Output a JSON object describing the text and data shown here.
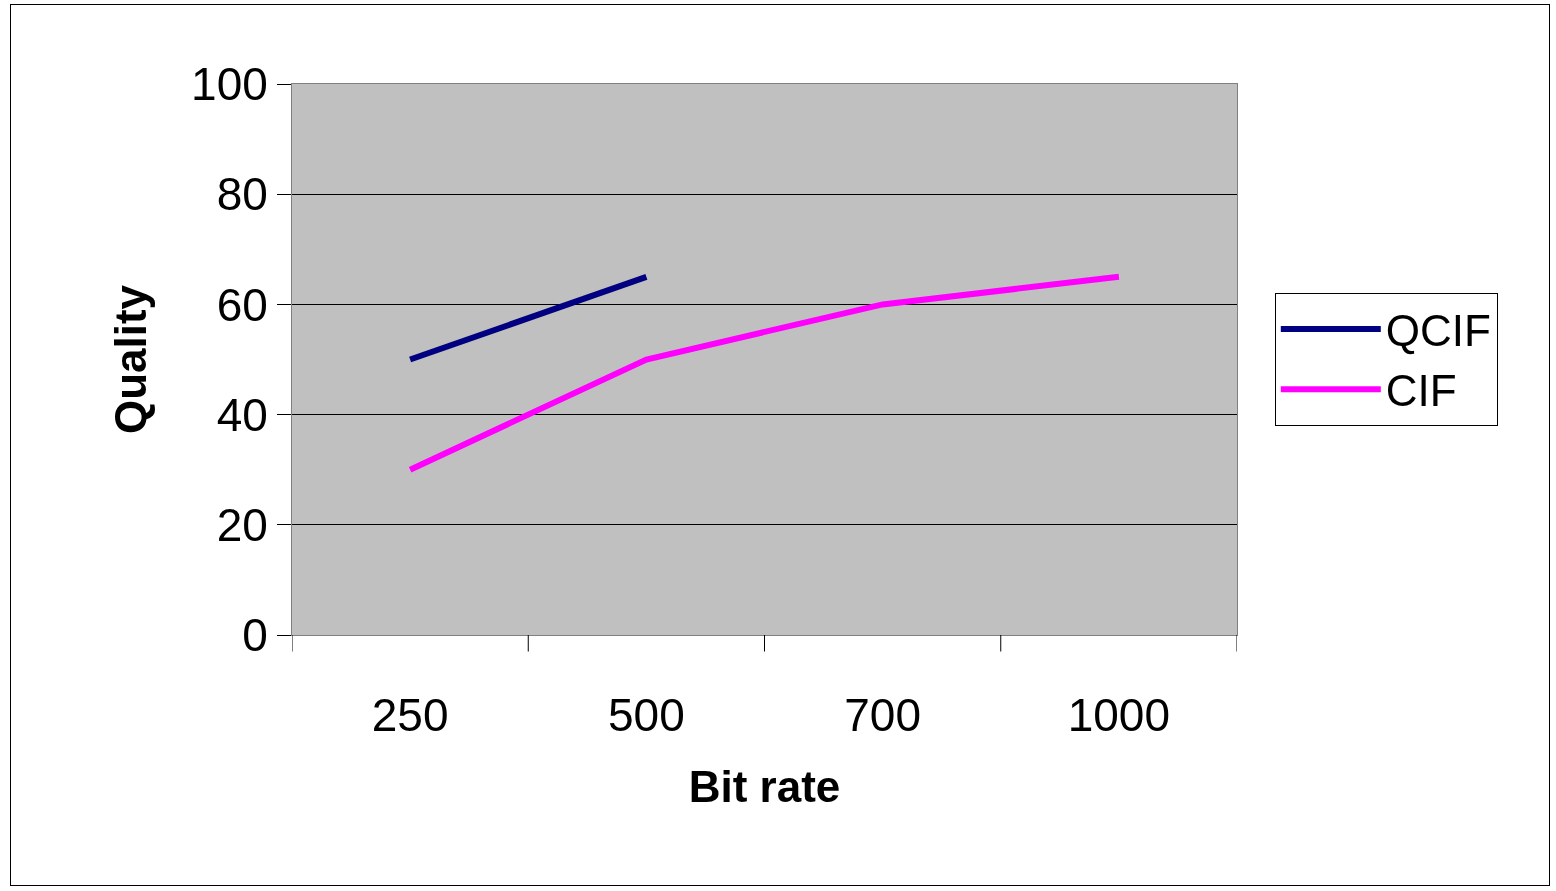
{
  "chart_data": {
    "type": "line",
    "xlabel": "Bit rate",
    "ylabel": "Quality",
    "categories": [
      "250",
      "500",
      "700",
      "1000"
    ],
    "series": [
      {
        "name": "QCIF",
        "color": "#000080",
        "values": [
          50,
          65,
          null,
          null
        ]
      },
      {
        "name": "CIF",
        "color": "#ff00ff",
        "values": [
          30,
          50,
          60,
          65
        ]
      }
    ],
    "ylim": [
      0,
      100
    ],
    "yticks": [
      0,
      20,
      40,
      60,
      80,
      100
    ],
    "grid": "y",
    "legend": "right",
    "line_style": "solid"
  }
}
